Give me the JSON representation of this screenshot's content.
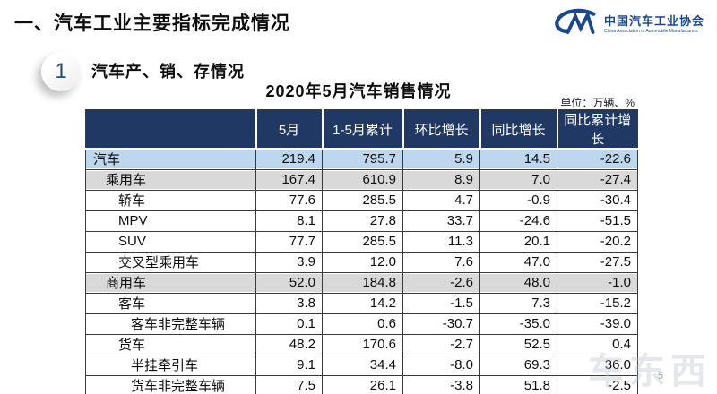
{
  "page": {
    "title": "一、汽车工业主要指标完成情况",
    "page_number": "5",
    "watermark": "车东西"
  },
  "logo": {
    "name": "中国汽车工业协会",
    "subtitle": "China Association of Automobile Manufacturers",
    "color": "#17478F"
  },
  "section": {
    "index": "1",
    "label": "汽车产、销、存情况"
  },
  "table": {
    "title": "2020年5月汽车销售情况",
    "unit_label": "单位：万辆、%",
    "header": [
      "",
      "5月",
      "1-5月累计",
      "环比增长",
      "同比增长",
      "同比累计增长"
    ],
    "rows": [
      {
        "label": "汽车",
        "indent": 0,
        "bg": "blue",
        "values": [
          "219.4",
          "795.7",
          "5.9",
          "14.5",
          "-22.6"
        ]
      },
      {
        "label": "乘用车",
        "indent": 1,
        "bg": "gray",
        "values": [
          "167.4",
          "610.9",
          "8.9",
          "7.0",
          "-27.4"
        ]
      },
      {
        "label": "轿车",
        "indent": 2,
        "bg": "white",
        "values": [
          "77.6",
          "285.5",
          "4.7",
          "-0.9",
          "-30.4"
        ]
      },
      {
        "label": "MPV",
        "indent": 2,
        "bg": "white",
        "values": [
          "8.1",
          "27.8",
          "33.7",
          "-24.6",
          "-51.5"
        ]
      },
      {
        "label": "SUV",
        "indent": 2,
        "bg": "white",
        "values": [
          "77.7",
          "285.5",
          "11.3",
          "20.1",
          "-20.2"
        ]
      },
      {
        "label": "交叉型乘用车",
        "indent": 2,
        "bg": "white",
        "values": [
          "3.9",
          "12.0",
          "7.6",
          "47.0",
          "-27.5"
        ]
      },
      {
        "label": "商用车",
        "indent": 1,
        "bg": "gray",
        "values": [
          "52.0",
          "184.8",
          "-2.6",
          "48.0",
          "-1.0"
        ]
      },
      {
        "label": "客车",
        "indent": 2,
        "bg": "white",
        "values": [
          "3.8",
          "14.2",
          "-1.5",
          "7.3",
          "-15.2"
        ]
      },
      {
        "label": "客车非完整车辆",
        "indent": 3,
        "bg": "white",
        "values": [
          "0.1",
          "0.6",
          "-30.7",
          "-35.0",
          "-39.0"
        ]
      },
      {
        "label": "货车",
        "indent": 2,
        "bg": "white",
        "values": [
          "48.2",
          "170.6",
          "-2.7",
          "52.5",
          "0.4"
        ]
      },
      {
        "label": "半挂牵引车",
        "indent": 3,
        "bg": "white",
        "values": [
          "9.1",
          "34.4",
          "-8.0",
          "69.3",
          "36.0"
        ]
      },
      {
        "label": "货车非完整车辆",
        "indent": 3,
        "bg": "white",
        "values": [
          "7.5",
          "26.1",
          "-3.8",
          "51.8",
          "-2.5"
        ]
      }
    ],
    "colors": {
      "header_bg": "#1F3864",
      "header_text": "#FFFFFF",
      "row_blue": "#BDD7EE",
      "row_gray": "#D9D9D9",
      "border": "#3A3A3A"
    }
  }
}
